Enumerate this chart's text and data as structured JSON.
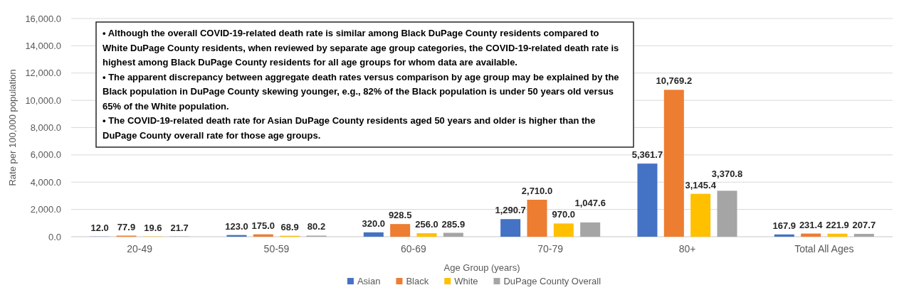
{
  "chart_data": {
    "type": "bar",
    "xlabel": "Age Group (years)",
    "ylabel": "Rate per 100,000 population",
    "categories": [
      "20-49",
      "50-59",
      "60-69",
      "70-79",
      "80+",
      "Total All Ages"
    ],
    "series": [
      {
        "name": "Asian",
        "color": "#4472c4",
        "values": [
          12.0,
          123.0,
          320.0,
          1290.7,
          5361.7,
          167.9
        ],
        "value_labels": [
          "12.0",
          "123.0",
          "320.0",
          "1,290.7",
          "5,361.7",
          "167.9"
        ]
      },
      {
        "name": "Black",
        "color": "#ed7d31",
        "values": [
          77.9,
          175.0,
          928.5,
          2710.0,
          10769.2,
          231.4
        ],
        "value_labels": [
          "77.9",
          "175.0",
          "928.5",
          "2,710.0",
          "10,769.2",
          "231.4"
        ]
      },
      {
        "name": "White",
        "color": "#ffc000",
        "values": [
          19.6,
          68.9,
          256.0,
          970.0,
          3145.4,
          221.9
        ],
        "value_labels": [
          "19.6",
          "68.9",
          "256.0",
          "970.0",
          "3,145.4",
          "221.9"
        ]
      },
      {
        "name": "DuPage County Overall",
        "color": "#a5a5a5",
        "values": [
          21.7,
          80.2,
          285.9,
          1047.6,
          3370.8,
          207.7
        ],
        "value_labels": [
          "21.7",
          "80.2",
          "285.9",
          "1,047.6",
          "3,370.8",
          "207.7"
        ]
      }
    ],
    "ylim": [
      0,
      16000
    ],
    "yticks": [
      {
        "value": 0,
        "label": "0.0"
      },
      {
        "value": 2000,
        "label": "2,000.0"
      },
      {
        "value": 4000,
        "label": "4,000.0"
      },
      {
        "value": 6000,
        "label": "6,000.0"
      },
      {
        "value": 8000,
        "label": "8,000.0"
      },
      {
        "value": 10000,
        "label": "10,000.0"
      },
      {
        "value": 12000,
        "label": "12,000.0"
      },
      {
        "value": 14000,
        "label": "14,000.0"
      },
      {
        "value": 16000,
        "label": "16,000.0"
      }
    ],
    "grid": "y",
    "legend": "bottom",
    "annotations": [
      "• Although the overall COVID-19-related death rate is similar among Black DuPage County residents compared to White DuPage County residents, when reviewed by separate age group categories, the COVID-19-related death rate is highest among Black DuPage County residents for all age groups for whom data are available.",
      "• The apparent discrepancy between aggregate death rates versus comparison by age group may be explained by the Black population in DuPage County skewing younger, e.g., 82% of the Black population is under 50 years old versus 65% of the White population.",
      "• The COVID-19-related death rate for Asian DuPage County residents aged 50 years and older is higher than the DuPage County overall rate for those age groups."
    ]
  }
}
